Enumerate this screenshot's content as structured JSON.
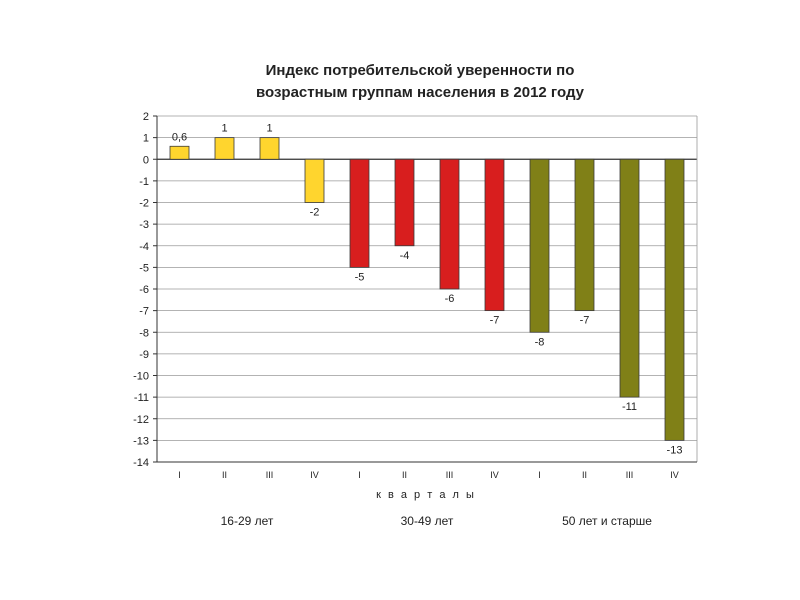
{
  "chart_data": {
    "type": "bar",
    "title_lines": [
      "Индекс потребительской уверенности по",
      "возрастным группам населения в 2012 году"
    ],
    "xlabel": "к в а р т а л ы",
    "ylabel": "",
    "ylim": [
      -14,
      2
    ],
    "yticks": [
      2,
      1,
      0,
      -1,
      -2,
      -3,
      -4,
      -5,
      -6,
      -7,
      -8,
      -9,
      -10,
      -11,
      -12,
      -13,
      -14
    ],
    "grid": true,
    "legend": "none",
    "categories": [
      "I",
      "II",
      "III",
      "IV",
      "I",
      "II",
      "III",
      "IV",
      "I",
      "II",
      "III",
      "IV"
    ],
    "values": [
      0.6,
      1,
      1,
      -2,
      -5,
      -4,
      -6,
      -7,
      -8,
      -7,
      -11,
      -13
    ],
    "data_labels": [
      "0,6",
      "1",
      "1",
      "-2",
      "-5",
      "-4",
      "-6",
      "-7",
      "-8",
      "-7",
      "-11",
      "-13"
    ],
    "groups": [
      {
        "label": "16-29 лет",
        "color": "#FFD52E",
        "count": 4
      },
      {
        "label": "30-49 лет",
        "color": "#D81E1E",
        "count": 4
      },
      {
        "label": "50 лет и старше",
        "color": "#808017",
        "count": 4
      }
    ]
  }
}
